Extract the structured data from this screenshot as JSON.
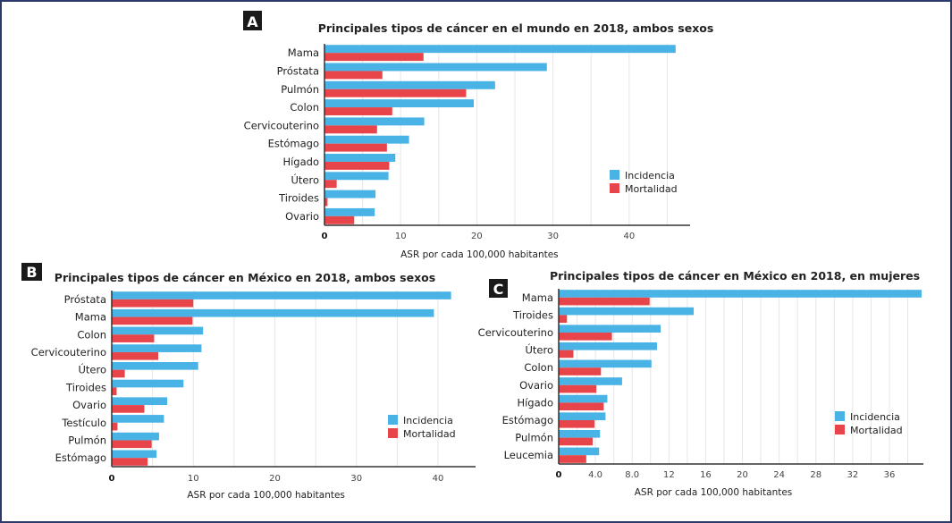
{
  "colors": {
    "incidencia": "#4ab3e6",
    "mortalidad": "#e8454a",
    "grid": "#e6e6e6",
    "axis": "#333333",
    "panel_label_bg": "#1a1a1a"
  },
  "chart_data": [
    {
      "type": "bar",
      "orientation": "horizontal",
      "panel": "A",
      "title": "Principales tipos de cáncer en el mundo en 2018, ambos sexos",
      "xlabel": "ASR por cada 100,000 habitantes",
      "ylabel": "",
      "xlim": [
        0,
        48
      ],
      "xticks": [
        0,
        10,
        20,
        30,
        40
      ],
      "xtick_labels": [
        "0",
        "10",
        "20",
        "30",
        "40"
      ],
      "grid": true,
      "legend": "right",
      "categories": [
        "Mama",
        "Próstata",
        "Pulmón",
        "Colon",
        "Cervicouterino",
        "Estómago",
        "Hígado",
        "Útero",
        "Tiroides",
        "Ovario"
      ],
      "series": [
        {
          "name": "Incidencia",
          "values": [
            46.1,
            29.2,
            22.4,
            19.6,
            13.1,
            11.1,
            9.3,
            8.4,
            6.7,
            6.6
          ]
        },
        {
          "name": "Mortalidad",
          "values": [
            13.0,
            7.6,
            18.6,
            8.9,
            6.9,
            8.2,
            8.5,
            1.6,
            0.4,
            3.9
          ]
        }
      ]
    },
    {
      "type": "bar",
      "orientation": "horizontal",
      "panel": "B",
      "title": "Principales tipos de cáncer en México en 2018, ambos sexos",
      "xlabel": "ASR por cada 100,000 habitantes",
      "ylabel": "",
      "xlim": [
        0,
        44.6
      ],
      "xticks": [
        0,
        10,
        20,
        30,
        40
      ],
      "xtick_labels": [
        "0",
        "10",
        "20",
        "30",
        "40"
      ],
      "grid": true,
      "legend": "right",
      "categories": [
        "Próstata",
        "Mama",
        "Colon",
        "Cervicouterino",
        "Útero",
        "Tiroides",
        "Ovario",
        "Testículo",
        "Pulmón",
        "Estómago"
      ],
      "series": [
        {
          "name": "Incidencia",
          "values": [
            41.6,
            39.5,
            11.2,
            11.0,
            10.6,
            8.8,
            6.8,
            6.4,
            5.8,
            5.5
          ]
        },
        {
          "name": "Mortalidad",
          "values": [
            10.0,
            9.9,
            5.2,
            5.7,
            1.6,
            0.6,
            4.0,
            0.7,
            4.9,
            4.4
          ]
        }
      ]
    },
    {
      "type": "bar",
      "orientation": "horizontal",
      "panel": "C",
      "title": "Principales tipos de cáncer en México en 2018, en mujeres",
      "xlabel": "ASR por cada 100,000 habitantes",
      "ylabel": "",
      "xlim": [
        0,
        39.7
      ],
      "xticks": [
        0,
        4,
        8,
        12,
        16,
        20,
        24,
        28,
        32,
        36
      ],
      "xtick_labels": [
        "0",
        "4.0",
        "8.0",
        "12",
        "16",
        "20",
        "24",
        "28",
        "32",
        "36"
      ],
      "grid": true,
      "legend": "right",
      "categories": [
        "Mama",
        "Tiroides",
        "Cervicouterino",
        "Útero",
        "Colon",
        "Ovario",
        "Hígado",
        "Estómago",
        "Pulmón",
        "Leucemia"
      ],
      "series": [
        {
          "name": "Incidencia",
          "values": [
            39.5,
            14.7,
            11.1,
            10.7,
            10.1,
            6.9,
            5.3,
            5.1,
            4.5,
            4.4
          ]
        },
        {
          "name": "Mortalidad",
          "values": [
            9.9,
            0.9,
            5.8,
            1.6,
            4.6,
            4.1,
            4.9,
            3.9,
            3.7,
            3.0
          ]
        }
      ]
    }
  ]
}
